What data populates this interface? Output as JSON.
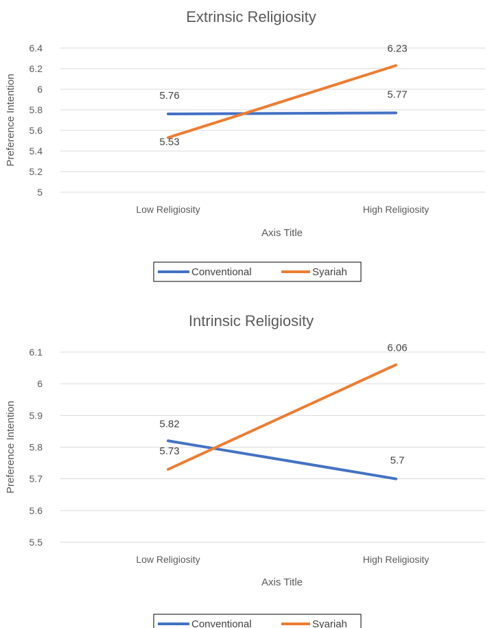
{
  "chart_data": [
    {
      "type": "line",
      "title": "Extrinsic Religiosity",
      "xlabel": "Axis Title",
      "ylabel": "Preference Intention",
      "categories": [
        "Low Religiosity",
        "High Religiosity"
      ],
      "ylim": [
        5,
        6.4
      ],
      "yticks": [
        "5",
        "5.2",
        "5.4",
        "5.6",
        "5.8",
        "6",
        "6.2",
        "6.4"
      ],
      "series": [
        {
          "name": "Conventional",
          "values": [
            5.76,
            5.77
          ],
          "labels": [
            "5.76",
            "5.77"
          ],
          "color": "#4472C4"
        },
        {
          "name": "Syariah",
          "values": [
            5.53,
            6.23
          ],
          "labels": [
            "5.53",
            "6.23"
          ],
          "color": "#ED7D31"
        }
      ],
      "grid": true,
      "legend": "bottom"
    },
    {
      "type": "line",
      "title": "Intrinsic Religiosity",
      "xlabel": "Axis Title",
      "ylabel": "Preference Intention",
      "categories": [
        "Low Religiosity",
        "High Religiosity"
      ],
      "ylim": [
        5.5,
        6.1
      ],
      "yticks": [
        "5.5",
        "5.6",
        "5.7",
        "5.8",
        "5.9",
        "6",
        "6.1"
      ],
      "series": [
        {
          "name": "Conventional",
          "values": [
            5.82,
            5.7
          ],
          "labels": [
            "5.82",
            "5.7"
          ],
          "color": "#4472C4"
        },
        {
          "name": "Syariah",
          "values": [
            5.73,
            6.06
          ],
          "labels": [
            "5.73",
            "6.06"
          ],
          "color": "#ED7D31"
        }
      ],
      "grid": true,
      "legend": "bottom"
    }
  ]
}
